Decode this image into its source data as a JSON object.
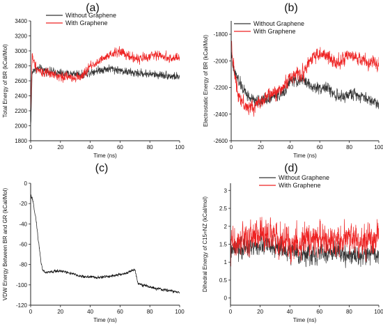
{
  "chart_data": [
    {
      "type": "line",
      "panel_label": "(a)",
      "xlabel": "Time (ns)",
      "ylabel": "Total Energy of BR (kCal/Mol)",
      "xlim": [
        0,
        100
      ],
      "ylim": [
        1800,
        3400
      ],
      "x_ticks": [
        0,
        20,
        40,
        60,
        80,
        100
      ],
      "y_ticks": [
        1800,
        2000,
        2200,
        2400,
        2600,
        2800,
        3000,
        3200,
        3400
      ],
      "legend_position": "top-center",
      "series": [
        {
          "name": "Without Graphene",
          "color": "#333333",
          "x": [
            0,
            0.5,
            1,
            2,
            5,
            10,
            15,
            20,
            25,
            30,
            35,
            40,
            45,
            50,
            55,
            60,
            65,
            70,
            75,
            80,
            85,
            90,
            95,
            100
          ],
          "y": [
            1950,
            2300,
            2700,
            2750,
            2760,
            2740,
            2720,
            2700,
            2690,
            2700,
            2680,
            2720,
            2740,
            2760,
            2760,
            2740,
            2720,
            2700,
            2700,
            2690,
            2680,
            2680,
            2660,
            2650
          ],
          "noise": 110
        },
        {
          "name": "With Graphene",
          "color": "#ee2222",
          "x": [
            0,
            0.5,
            1,
            2,
            5,
            10,
            15,
            20,
            25,
            30,
            35,
            40,
            45,
            50,
            55,
            60,
            65,
            70,
            75,
            80,
            85,
            90,
            95,
            100
          ],
          "y": [
            2100,
            2600,
            2950,
            2850,
            2750,
            2700,
            2680,
            2660,
            2650,
            2650,
            2660,
            2800,
            2850,
            2900,
            2950,
            3000,
            2930,
            2900,
            2900,
            2930,
            2950,
            2920,
            2900,
            2900
          ],
          "noise": 130
        }
      ]
    },
    {
      "type": "line",
      "panel_label": "(b)",
      "xlabel": "Time (ns)",
      "ylabel": "Electrostatic Energy of BR (kCal/Mol)",
      "xlim": [
        0,
        100
      ],
      "ylim": [
        -2600,
        -1700
      ],
      "x_ticks": [
        0,
        20,
        40,
        60,
        80,
        100
      ],
      "y_ticks": [
        -2600,
        -2400,
        -2200,
        -2000,
        -1800
      ],
      "legend_position": "top-right",
      "series": [
        {
          "name": "Without Graphene",
          "color": "#333333",
          "x": [
            0,
            1,
            3,
            5,
            10,
            15,
            20,
            25,
            30,
            35,
            40,
            45,
            50,
            55,
            60,
            65,
            70,
            75,
            80,
            85,
            90,
            95,
            100
          ],
          "y": [
            -1900,
            -2050,
            -2100,
            -2150,
            -2250,
            -2300,
            -2300,
            -2280,
            -2260,
            -2250,
            -2150,
            -2150,
            -2150,
            -2200,
            -2200,
            -2200,
            -2250,
            -2280,
            -2250,
            -2250,
            -2270,
            -2300,
            -2320
          ],
          "noise": 90
        },
        {
          "name": "With Graphene",
          "color": "#ee2222",
          "x": [
            0,
            1,
            3,
            5,
            10,
            15,
            20,
            25,
            30,
            35,
            40,
            45,
            50,
            55,
            60,
            65,
            70,
            75,
            80,
            85,
            90,
            95,
            100
          ],
          "y": [
            -1800,
            -2000,
            -2150,
            -2250,
            -2350,
            -2350,
            -2300,
            -2260,
            -2240,
            -2200,
            -2120,
            -2100,
            -2080,
            -1960,
            -1950,
            -1970,
            -2000,
            -2000,
            -1970,
            -1980,
            -2000,
            -2020,
            -2020
          ],
          "noise": 110
        }
      ]
    },
    {
      "type": "line",
      "panel_label": "(c)",
      "xlabel": "Time (ns)",
      "ylabel": "VDW Energy Between BR and GR (kCal/Mol)",
      "xlim": [
        0,
        100
      ],
      "ylim": [
        -120,
        0
      ],
      "x_ticks": [
        0,
        20,
        40,
        60,
        80,
        100
      ],
      "y_ticks": [
        -120,
        -100,
        -80,
        -60,
        -40,
        -20,
        0
      ],
      "series": [
        {
          "color": "#111111",
          "x": [
            0,
            1,
            2,
            3,
            4,
            5,
            6,
            7,
            8,
            10,
            15,
            20,
            25,
            30,
            35,
            40,
            45,
            50,
            55,
            60,
            65,
            70,
            72,
            75,
            80,
            85,
            90,
            95,
            100
          ],
          "y": [
            -12,
            -15,
            -22,
            -30,
            -40,
            -55,
            -65,
            -78,
            -85,
            -88,
            -87,
            -86,
            -88,
            -90,
            -92,
            -92,
            -93,
            -92,
            -91,
            -90,
            -88,
            -85,
            -98,
            -100,
            -102,
            -104,
            -105,
            -106,
            -108
          ],
          "noise": 3
        }
      ]
    },
    {
      "type": "line",
      "panel_label": "(d)",
      "xlabel": "Time (ns)",
      "ylabel": "Dihedral Energy of C15=NZ (kCal/mol)",
      "xlim": [
        0,
        100
      ],
      "ylim": [
        -0.2,
        3.2
      ],
      "x_ticks": [
        0,
        20,
        40,
        60,
        80,
        100
      ],
      "y_ticks": [
        0.0,
        0.5,
        1.0,
        1.5,
        2.0,
        2.5,
        3.0
      ],
      "legend_position": "top-right",
      "series": [
        {
          "name": "Without Graphene",
          "color": "#333333",
          "x": [
            0,
            10,
            20,
            30,
            40,
            50,
            60,
            70,
            80,
            90,
            100
          ],
          "y": [
            1.3,
            1.4,
            1.5,
            1.4,
            1.3,
            1.2,
            1.2,
            1.3,
            1.2,
            1.2,
            1.2
          ],
          "noise": 0.6
        },
        {
          "name": "With Graphene",
          "color": "#ee2222",
          "x": [
            0,
            10,
            20,
            30,
            40,
            50,
            60,
            70,
            80,
            90,
            100
          ],
          "y": [
            1.5,
            1.6,
            1.8,
            1.7,
            1.5,
            1.6,
            1.7,
            1.6,
            1.7,
            1.6,
            1.7
          ],
          "noise": 0.95
        }
      ]
    }
  ]
}
